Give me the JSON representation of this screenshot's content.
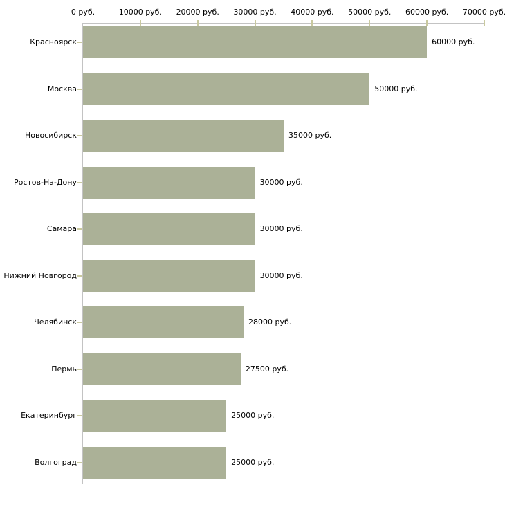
{
  "chart_data": {
    "type": "bar",
    "orientation": "horizontal",
    "title": "",
    "xlabel": "",
    "ylabel": "",
    "unit": "руб.",
    "categories": [
      "Красноярск",
      "Москва",
      "Новосибирск",
      "Ростов-На-Дону",
      "Самара",
      "Нижний Новгород",
      "Челябинск",
      "Пермь",
      "Екатеринбург",
      "Волгоград"
    ],
    "values": [
      60000,
      50000,
      35000,
      30000,
      30000,
      30000,
      28000,
      27500,
      25000,
      25000
    ],
    "value_labels": [
      "60000 руб.",
      "50000 руб.",
      "35000 руб.",
      "30000 руб.",
      "30000 руб.",
      "30000 руб.",
      "28000 руб.",
      "27500 руб.",
      "25000 руб.",
      "25000 руб."
    ],
    "x_ticks": [
      0,
      10000,
      20000,
      30000,
      40000,
      50000,
      60000,
      70000
    ],
    "x_tick_labels": [
      "0 руб.",
      "10000 руб.",
      "20000 руб.",
      "30000 руб.",
      "40000 руб.",
      "50000 руб.",
      "60000 руб.",
      "70000 руб."
    ],
    "xlim": [
      0,
      70000
    ],
    "grid": false,
    "legend": false,
    "axis_position": "top",
    "colors": {
      "bar": "#abb197",
      "axis": "#c3c3c3",
      "tick": "#c9c99f",
      "text": "#000000",
      "background": "#ffffff"
    }
  }
}
